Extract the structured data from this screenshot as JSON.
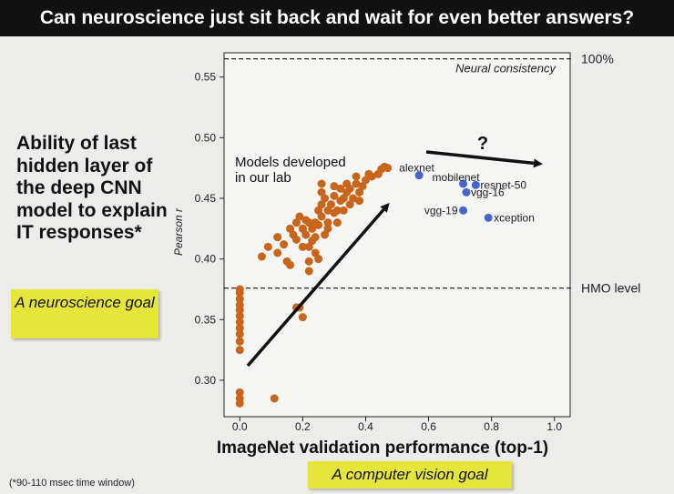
{
  "title": "Can neuroscience just sit back and wait for even better answers?",
  "left_text": "Ability of last hidden layer of the deep CNN model to explain IT responses*",
  "neuro_goal": "A neuroscience goal",
  "cv_goal": "A computer vision goal",
  "footnote": "(*90-110 msec time window)",
  "chart_data": {
    "type": "scatter",
    "xlabel": "ImageNet validation performance (top-1)",
    "ylabel": "Pearson r",
    "xlim": [
      -0.05,
      1.05
    ],
    "ylim": [
      0.27,
      0.57
    ],
    "xticks": [
      "0.0",
      "0.2",
      "0.4",
      "0.6",
      "0.8",
      "1.0"
    ],
    "yticks": [
      "0.30",
      "0.35",
      "0.40",
      "0.45",
      "0.50",
      "0.55"
    ],
    "reference_lines": [
      {
        "y": 0.565,
        "label": "Neural consistency",
        "right_label": "100%"
      },
      {
        "y": 0.376,
        "label": "",
        "right_label": "HMO level"
      }
    ],
    "annotation_models": "Models developed in our lab",
    "annotation_question": "?",
    "series": [
      {
        "color": "#c8651a",
        "points": [
          [
            0.0,
            0.281
          ],
          [
            0.0,
            0.285
          ],
          [
            0.0,
            0.29
          ],
          [
            0.0,
            0.325
          ],
          [
            0.0,
            0.332
          ],
          [
            0.0,
            0.338
          ],
          [
            0.0,
            0.343
          ],
          [
            0.0,
            0.348
          ],
          [
            0.0,
            0.353
          ],
          [
            0.0,
            0.358
          ],
          [
            0.0,
            0.362
          ],
          [
            0.0,
            0.367
          ],
          [
            0.0,
            0.372
          ],
          [
            0.0,
            0.375
          ],
          [
            0.11,
            0.285
          ],
          [
            0.07,
            0.402
          ],
          [
            0.09,
            0.41
          ],
          [
            0.12,
            0.418
          ],
          [
            0.12,
            0.405
          ],
          [
            0.14,
            0.412
          ],
          [
            0.15,
            0.398
          ],
          [
            0.16,
            0.425
          ],
          [
            0.16,
            0.395
          ],
          [
            0.17,
            0.42
          ],
          [
            0.18,
            0.43
          ],
          [
            0.18,
            0.416
          ],
          [
            0.18,
            0.36
          ],
          [
            0.2,
            0.352
          ],
          [
            0.19,
            0.36
          ],
          [
            0.19,
            0.435
          ],
          [
            0.2,
            0.425
          ],
          [
            0.2,
            0.41
          ],
          [
            0.21,
            0.42
          ],
          [
            0.21,
            0.432
          ],
          [
            0.22,
            0.41
          ],
          [
            0.22,
            0.398
          ],
          [
            0.22,
            0.39
          ],
          [
            0.23,
            0.415
          ],
          [
            0.23,
            0.425
          ],
          [
            0.24,
            0.43
          ],
          [
            0.24,
            0.418
          ],
          [
            0.24,
            0.405
          ],
          [
            0.25,
            0.44
          ],
          [
            0.25,
            0.428
          ],
          [
            0.26,
            0.445
          ],
          [
            0.26,
            0.435
          ],
          [
            0.26,
            0.455
          ],
          [
            0.27,
            0.42
          ],
          [
            0.27,
            0.45
          ],
          [
            0.28,
            0.43
          ],
          [
            0.28,
            0.44
          ],
          [
            0.29,
            0.445
          ],
          [
            0.3,
            0.452
          ],
          [
            0.3,
            0.438
          ],
          [
            0.31,
            0.44
          ],
          [
            0.31,
            0.43
          ],
          [
            0.32,
            0.448
          ],
          [
            0.32,
            0.458
          ],
          [
            0.33,
            0.44
          ],
          [
            0.33,
            0.45
          ],
          [
            0.34,
            0.455
          ],
          [
            0.34,
            0.462
          ],
          [
            0.35,
            0.445
          ],
          [
            0.35,
            0.458
          ],
          [
            0.36,
            0.45
          ],
          [
            0.37,
            0.462
          ],
          [
            0.37,
            0.468
          ],
          [
            0.38,
            0.455
          ],
          [
            0.38,
            0.448
          ],
          [
            0.39,
            0.46
          ],
          [
            0.4,
            0.465
          ],
          [
            0.41,
            0.47
          ],
          [
            0.42,
            0.468
          ],
          [
            0.44,
            0.47
          ],
          [
            0.45,
            0.474
          ],
          [
            0.46,
            0.476
          ],
          [
            0.47,
            0.475
          ],
          [
            0.2,
            0.425
          ],
          [
            0.22,
            0.43
          ],
          [
            0.25,
            0.4
          ],
          [
            0.28,
            0.425
          ],
          [
            0.3,
            0.46
          ],
          [
            0.26,
            0.462
          ]
        ]
      },
      {
        "color": "#4466cc",
        "points": [
          {
            "x": 0.57,
            "y": 0.469,
            "label": "alexnet"
          },
          {
            "x": 0.71,
            "y": 0.462,
            "label": "mobilenet"
          },
          {
            "x": 0.75,
            "y": 0.461,
            "label": "resnet-50"
          },
          {
            "x": 0.72,
            "y": 0.455,
            "label": "vgg-16"
          },
          {
            "x": 0.71,
            "y": 0.44,
            "label": "vgg-19"
          },
          {
            "x": 0.79,
            "y": 0.434,
            "label": "xception"
          }
        ]
      }
    ]
  }
}
